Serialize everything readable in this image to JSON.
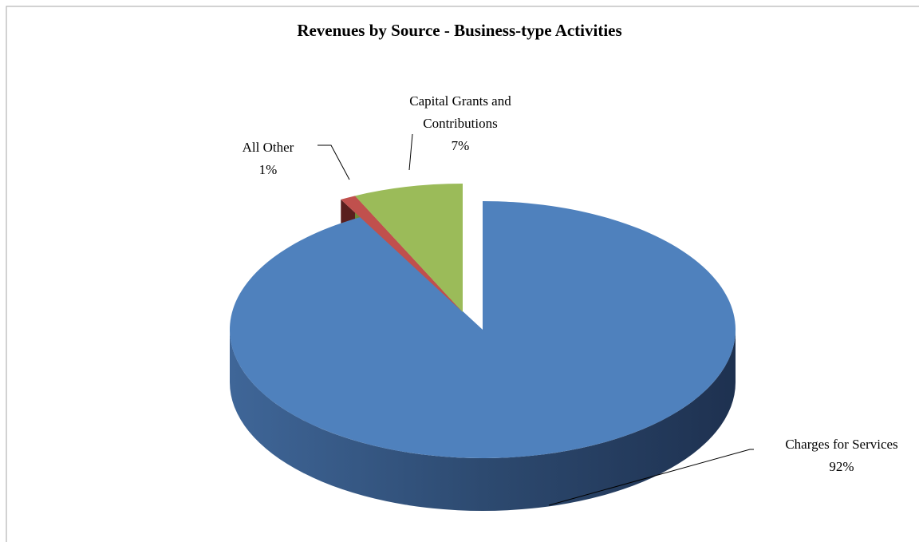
{
  "chart_data": {
    "type": "pie",
    "title": "Revenues by Source - Business-type Activities",
    "categories": [
      "Charges for Services",
      "All Other",
      "Capital Grants and Contributions"
    ],
    "values": [
      92,
      1,
      7
    ],
    "value_labels": [
      "92%",
      "1%",
      "7%"
    ],
    "colors": [
      "#4f81bd",
      "#c0504d",
      "#9bbb59"
    ]
  }
}
